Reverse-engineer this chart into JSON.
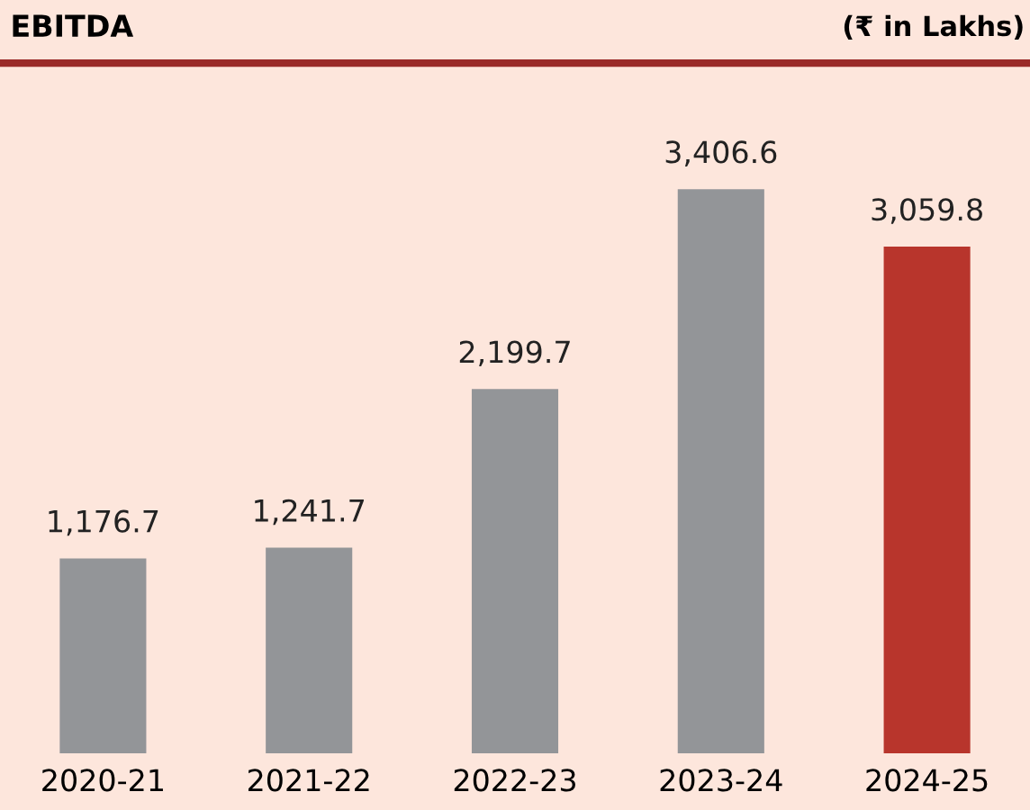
{
  "chart_data": {
    "type": "bar",
    "title": "EBITDA",
    "annotations": [
      "(₹ in Lakhs)"
    ],
    "categories": [
      "2020-21",
      "2021-22",
      "2022-23",
      "2023-24",
      "2024-25"
    ],
    "values": [
      1176.7,
      1241.7,
      2199.7,
      3406.6,
      3059.8
    ],
    "colors": [
      "#939598",
      "#939598",
      "#939598",
      "#939598",
      "#b8352c"
    ],
    "value_labels": [
      "1,176.7",
      "1,241.7",
      "2,199.7",
      "3,406.6",
      "3,059.8"
    ],
    "grid": false,
    "legend": false
  }
}
